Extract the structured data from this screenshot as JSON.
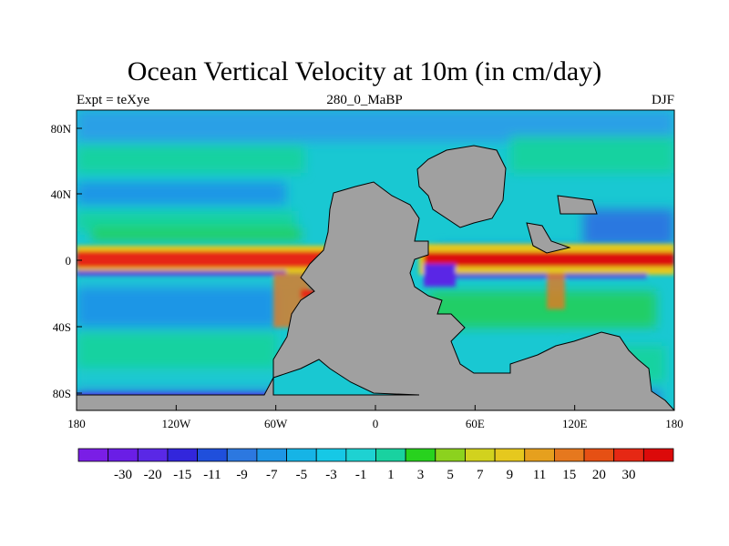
{
  "title": "Ocean Vertical Velocity at 10m (in cm/day)",
  "left_label": "Expt = teXye",
  "center_label": "280_0_MaBP",
  "right_label": "DJF",
  "lon_ticks": [
    "180",
    "120W",
    "60W",
    "0",
    "60E",
    "120E",
    "180"
  ],
  "lat_ticks": [
    "80N",
    "40N",
    "0",
    "40S",
    "80S"
  ],
  "colorbar": {
    "colors": [
      "#7a1ee6",
      "#6a1ee6",
      "#5a28e6",
      "#3226dc",
      "#1f4fdc",
      "#2c78e0",
      "#1e96e6",
      "#16b4e6",
      "#16c8e6",
      "#1ed2d2",
      "#19d2a0",
      "#28d21e",
      "#8cd21e",
      "#d2d21e",
      "#e6c81e",
      "#e6a01e",
      "#e6781e",
      "#e65014",
      "#e62814",
      "#dc0a0a"
    ],
    "labels": [
      "-30",
      "-20",
      "-15",
      "-11",
      "-9",
      "-7",
      "-5",
      "-3",
      "-1",
      "1",
      "3",
      "5",
      "7",
      "9",
      "11",
      "15",
      "20",
      "30"
    ]
  },
  "colors": {
    "background_ocean": "#19c8d2",
    "land": "#a0a0a0",
    "upwelling": "#e62814",
    "downwelling": "#5a28e6"
  }
}
